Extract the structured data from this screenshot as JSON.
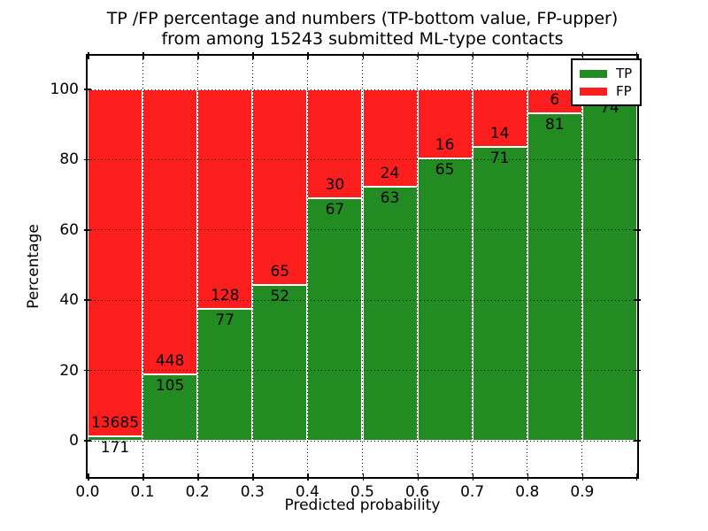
{
  "figure": {
    "background": "#ffffff",
    "title_lines": [
      "TP /FP percentage and numbers (TP-bottom value, FP-upper)",
      "from among 15243 submitted ML-type contacts"
    ]
  },
  "chart_data": {
    "type": "bar",
    "stacked": true,
    "normalized": "each bar totals 100%",
    "title": "TP /FP percentage and numbers (TP-bottom value, FP-upper) from among 15243 submitted ML-type contacts",
    "total_submitted": 15243,
    "xlabel": "Predicted probability",
    "ylabel": "Percentage",
    "x_tick_labels": [
      "0.0",
      "0.1",
      "0.2",
      "0.3",
      "0.4",
      "0.5",
      "0.6",
      "0.7",
      "0.8",
      "0.9"
    ],
    "y_tick_labels": [
      "0",
      "20",
      "40",
      "60",
      "80",
      "100"
    ],
    "y_ticks": [
      0,
      20,
      40,
      60,
      80,
      100
    ],
    "ylim": [
      -10.3,
      109.3
    ],
    "xlim": [
      0.0,
      1.0
    ],
    "grid": "dotted",
    "legend": {
      "position": "upper-right",
      "entries": [
        {
          "label": "TP",
          "color": "#228b22"
        },
        {
          "label": "FP",
          "color": "#fc1d1d"
        }
      ]
    },
    "colors": {
      "tp": "#228b22",
      "fp": "#fc1d1d",
      "bar_edge": "#ffffff",
      "grid": "#000000",
      "text": "#000000"
    },
    "categories": [
      "0.0-0.1",
      "0.1-0.2",
      "0.2-0.3",
      "0.3-0.4",
      "0.4-0.5",
      "0.5-0.6",
      "0.6-0.7",
      "0.7-0.8",
      "0.8-0.9",
      "0.9-1.0"
    ],
    "series": [
      {
        "name": "TP",
        "counts": [
          171,
          105,
          77,
          52,
          67,
          63,
          65,
          71,
          81,
          74
        ]
      },
      {
        "name": "FP",
        "counts": [
          13685,
          448,
          128,
          65,
          30,
          24,
          16,
          14,
          6,
          null
        ]
      }
    ],
    "tp_pct": [
      1.23,
      18.99,
      37.56,
      44.44,
      69.07,
      72.41,
      80.25,
      83.53,
      93.1,
      98.0
    ],
    "occlusion_note": "FP count label of the 0.9-1.0 bar is hidden behind the legend box"
  }
}
